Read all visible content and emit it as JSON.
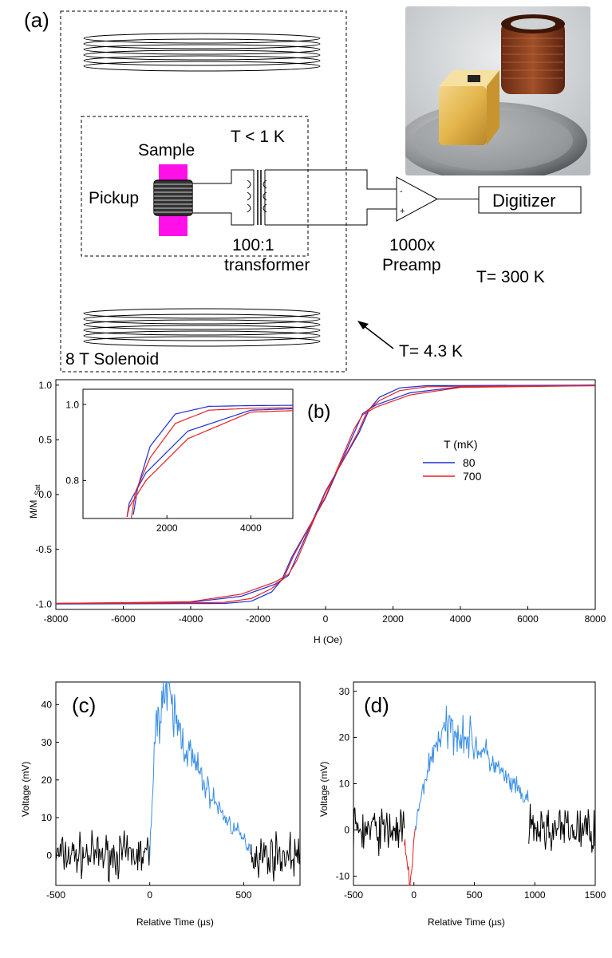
{
  "panel_a": {
    "label": "(a)",
    "sample": "Sample",
    "pickup": "Pickup",
    "t_inner": "T < 1 K",
    "transformer_ratio": "100:1",
    "transformer": "transformer",
    "preamp_gain": "1000x",
    "preamp": "Preamp",
    "digitizer": "Digitizer",
    "t_room": "T= 300 K",
    "t_bath": "T= 4.3 K",
    "solenoid": "8 T Solenoid",
    "opamp_minus": "-",
    "opamp_plus": "+"
  },
  "chart_data": [
    {
      "type": "line",
      "label": "(b)",
      "title": "",
      "xlabel": "H (Oe)",
      "ylabel": "M/M",
      "ylabel_sub": "Sat",
      "xlim": [
        -8000,
        8000
      ],
      "ylim": [
        -1.05,
        1.05
      ],
      "xticks": [
        -8000,
        -6000,
        -4000,
        -2000,
        0,
        2000,
        4000,
        6000,
        8000
      ],
      "yticks": [
        -1.0,
        -0.5,
        0.0,
        0.5,
        1.0
      ],
      "xtick_labels": [
        "-8000",
        "-6000",
        "-4000",
        "-2000",
        "0",
        "2000",
        "4000",
        "6000",
        "8000"
      ],
      "ytick_labels": [
        "-1.0",
        "-0.5",
        "0.0",
        "0.5",
        "1.0"
      ],
      "legend_title": "T (mK)",
      "legend_position": "right, mid-upper",
      "series": [
        {
          "name": "80",
          "color": "#1f2fd6",
          "up": {
            "x": [
              -8000,
              -4000,
              -2500,
              -1500,
              -1100,
              -900,
              0,
              1000,
              1300,
              1600,
              2200,
              3000,
              4000,
              8000
            ],
            "y": [
              -0.995,
              -0.985,
              -0.93,
              -0.82,
              -0.74,
              -0.6,
              0.03,
              0.57,
              0.78,
              0.89,
              0.975,
              0.995,
              0.997,
              1.0
            ]
          },
          "down": {
            "x": [
              8000,
              4000,
              2500,
              1500,
              1100,
              900,
              0,
              -1000,
              -1300,
              -1600,
              -2200,
              -3000,
              -4000,
              -8000
            ],
            "y": [
              1.0,
              0.985,
              0.93,
              0.82,
              0.74,
              0.6,
              -0.03,
              -0.57,
              -0.78,
              -0.89,
              -0.975,
              -0.995,
              -0.997,
              -1.0
            ]
          }
        },
        {
          "name": "700",
          "color": "#e52222",
          "up": {
            "x": [
              -8000,
              -4000,
              -2500,
              -1500,
              -1100,
              -850,
              0,
              950,
              1250,
              1600,
              2200,
              3000,
              4000,
              8000
            ],
            "y": [
              -0.995,
              -0.98,
              -0.91,
              -0.8,
              -0.73,
              -0.6,
              0.02,
              0.56,
              0.77,
              0.86,
              0.95,
              0.985,
              0.99,
              0.995
            ]
          },
          "down": {
            "x": [
              8000,
              4000,
              2500,
              1500,
              1100,
              850,
              0,
              -950,
              -1250,
              -1600,
              -2200,
              -3000,
              -4000,
              -8000
            ],
            "y": [
              0.995,
              0.98,
              0.91,
              0.8,
              0.73,
              0.6,
              -0.02,
              -0.56,
              -0.77,
              -0.86,
              -0.95,
              -0.985,
              -0.99,
              -0.995
            ]
          }
        }
      ],
      "inset": {
        "xlim": [
          0,
          5000
        ],
        "ylim": [
          0.7,
          1.04
        ],
        "xticks": [
          2000,
          4000
        ],
        "yticks": [
          0.8,
          1.0
        ],
        "xtick_labels": [
          "2000",
          "4000"
        ],
        "ytick_labels": [
          "0.8",
          "1.0"
        ]
      }
    },
    {
      "type": "line",
      "label": "(c)",
      "title": "",
      "xlabel": "Relative Time (µs)",
      "ylabel": "Voltage (mV)",
      "xlim": [
        -500,
        800
      ],
      "ylim": [
        -8,
        46
      ],
      "xticks": [
        -500,
        0,
        500
      ],
      "yticks": [
        0,
        10,
        20,
        30,
        40
      ],
      "xtick_labels": [
        "-500",
        "0",
        "500"
      ],
      "ytick_labels": [
        "0",
        "10",
        "20",
        "30",
        "40"
      ],
      "series": [
        {
          "name": "",
          "color": "#000000",
          "segment": "baseline pre",
          "x": [
            -500,
            0
          ],
          "noise_mV": 4.5
        },
        {
          "name": "",
          "color": "#3a8ee6",
          "segment": "pulse",
          "x": [
            0,
            540
          ],
          "envelope_x": [
            0,
            20,
            50,
            80,
            120,
            200,
            300,
            400,
            500,
            540
          ],
          "envelope_y": [
            0,
            25,
            40,
            44,
            38,
            28,
            18,
            10,
            4,
            2
          ]
        },
        {
          "name": "",
          "color": "#000000",
          "segment": "baseline post",
          "x": [
            540,
            800
          ],
          "noise_mV": 4.5
        }
      ]
    },
    {
      "type": "line",
      "label": "(d)",
      "title": "",
      "xlabel": "Relative Time (µs)",
      "ylabel": "Voltage (mV)",
      "xlim": [
        -500,
        1500
      ],
      "ylim": [
        -12,
        32
      ],
      "xticks": [
        -500,
        0,
        500,
        1000,
        1500
      ],
      "yticks": [
        -10,
        0,
        10,
        20,
        30
      ],
      "xtick_labels": [
        "-500",
        "0",
        "500",
        "1000",
        "1500"
      ],
      "ytick_labels": [
        "-10",
        "0",
        "10",
        "20",
        "30"
      ],
      "series": [
        {
          "name": "",
          "color": "#000000",
          "segment": "baseline pre",
          "x": [
            -500,
            -80
          ],
          "noise_mV": 4
        },
        {
          "name": "",
          "color": "#e02020",
          "segment": "dip",
          "x": [
            -80,
            10
          ],
          "envelope_x": [
            -80,
            -50,
            -30,
            -10,
            10
          ],
          "envelope_y": [
            -3,
            -9,
            -11,
            -6,
            0
          ]
        },
        {
          "name": "",
          "color": "#3a8ee6",
          "segment": "pulse",
          "x": [
            10,
            950
          ],
          "envelope_x": [
            10,
            100,
            200,
            300,
            400,
            600,
            800,
            950
          ],
          "envelope_y": [
            0,
            12,
            20,
            22,
            21,
            16,
            10,
            6
          ]
        },
        {
          "name": "",
          "color": "#000000",
          "segment": "baseline post",
          "x": [
            950,
            1500
          ],
          "noise_mV": 4
        }
      ]
    }
  ]
}
